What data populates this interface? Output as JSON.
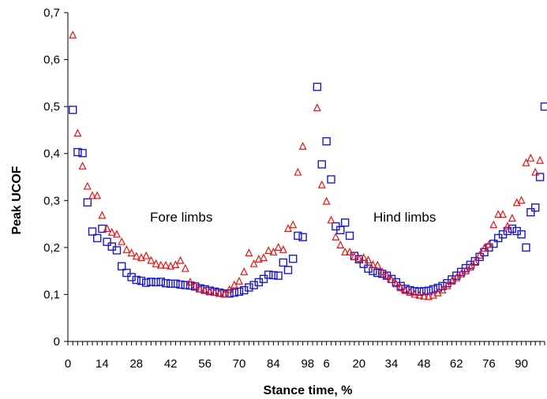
{
  "chart_data": {
    "type": "scatter",
    "title": "",
    "xlabel": "Stance time, %",
    "ylabel": "Peak UCOF",
    "ylim": [
      0,
      0.7
    ],
    "yticks": [
      "0",
      "0,1",
      "0,2",
      "0,3",
      "0,4",
      "0,5",
      "0,6",
      "0,7"
    ],
    "grid": false,
    "legend": "none",
    "colors": {
      "triangles": "#ee1111",
      "squares": "#1a1acc",
      "axis": "#000000"
    },
    "annotations": [
      {
        "id": "fore",
        "text": "Fore limbs"
      },
      {
        "id": "hind",
        "text": "Hind limbs"
      }
    ],
    "panels": [
      {
        "name": "Fore limbs",
        "x_range": [
          0,
          100
        ],
        "xtick_labels": [
          "0",
          "14",
          "28",
          "42",
          "56",
          "70",
          "84",
          "98"
        ],
        "squares": [
          [
            2,
            0.493
          ],
          [
            4,
            0.403
          ],
          [
            6,
            0.401
          ],
          [
            8,
            0.296
          ],
          [
            10,
            0.234
          ],
          [
            12,
            0.22
          ],
          [
            14,
            0.24
          ],
          [
            16,
            0.212
          ],
          [
            18,
            0.202
          ],
          [
            20,
            0.194
          ],
          [
            22,
            0.16
          ],
          [
            24,
            0.146
          ],
          [
            26,
            0.137
          ],
          [
            28,
            0.131
          ],
          [
            30,
            0.129
          ],
          [
            32,
            0.125
          ],
          [
            34,
            0.127
          ],
          [
            36,
            0.126
          ],
          [
            38,
            0.127
          ],
          [
            40,
            0.124
          ],
          [
            42,
            0.123
          ],
          [
            44,
            0.123
          ],
          [
            46,
            0.121
          ],
          [
            48,
            0.12
          ],
          [
            50,
            0.119
          ],
          [
            52,
            0.117
          ],
          [
            54,
            0.113
          ],
          [
            56,
            0.111
          ],
          [
            58,
            0.108
          ],
          [
            60,
            0.106
          ],
          [
            62,
            0.104
          ],
          [
            64,
            0.102
          ],
          [
            66,
            0.102
          ],
          [
            68,
            0.104
          ],
          [
            70,
            0.106
          ],
          [
            72,
            0.109
          ],
          [
            74,
            0.115
          ],
          [
            76,
            0.12
          ],
          [
            78,
            0.126
          ],
          [
            80,
            0.133
          ],
          [
            82,
            0.142
          ],
          [
            84,
            0.141
          ],
          [
            86,
            0.14
          ],
          [
            88,
            0.168
          ],
          [
            90,
            0.152
          ],
          [
            92,
            0.176
          ],
          [
            94,
            0.225
          ],
          [
            96,
            0.222
          ]
        ],
        "triangles": [
          [
            2,
            0.652
          ],
          [
            4,
            0.443
          ],
          [
            6,
            0.373
          ],
          [
            8,
            0.33
          ],
          [
            10,
            0.31
          ],
          [
            12,
            0.31
          ],
          [
            14,
            0.268
          ],
          [
            16,
            0.24
          ],
          [
            18,
            0.232
          ],
          [
            20,
            0.228
          ],
          [
            22,
            0.212
          ],
          [
            24,
            0.195
          ],
          [
            26,
            0.188
          ],
          [
            28,
            0.181
          ],
          [
            30,
            0.178
          ],
          [
            32,
            0.182
          ],
          [
            34,
            0.172
          ],
          [
            36,
            0.165
          ],
          [
            38,
            0.162
          ],
          [
            40,
            0.162
          ],
          [
            42,
            0.16
          ],
          [
            44,
            0.163
          ],
          [
            46,
            0.172
          ],
          [
            48,
            0.155
          ],
          [
            50,
            0.126
          ],
          [
            52,
            0.118
          ],
          [
            54,
            0.111
          ],
          [
            56,
            0.108
          ],
          [
            58,
            0.105
          ],
          [
            60,
            0.104
          ],
          [
            62,
            0.102
          ],
          [
            64,
            0.1
          ],
          [
            66,
            0.11
          ],
          [
            68,
            0.12
          ],
          [
            70,
            0.128
          ],
          [
            72,
            0.148
          ],
          [
            74,
            0.188
          ],
          [
            76,
            0.165
          ],
          [
            78,
            0.175
          ],
          [
            80,
            0.178
          ],
          [
            82,
            0.193
          ],
          [
            84,
            0.19
          ],
          [
            86,
            0.2
          ],
          [
            88,
            0.195
          ],
          [
            90,
            0.24
          ],
          [
            92,
            0.248
          ],
          [
            94,
            0.36
          ],
          [
            96,
            0.415
          ]
        ]
      },
      {
        "name": "Hind limbs",
        "x_range": [
          0,
          100
        ],
        "xtick_labels": [
          "6",
          "20",
          "34",
          "48",
          "62",
          "76",
          "90"
        ],
        "squares": [
          [
            2,
            0.542
          ],
          [
            4,
            0.377
          ],
          [
            6,
            0.426
          ],
          [
            8,
            0.345
          ],
          [
            10,
            0.245
          ],
          [
            12,
            0.237
          ],
          [
            14,
            0.253
          ],
          [
            16,
            0.225
          ],
          [
            18,
            0.182
          ],
          [
            20,
            0.175
          ],
          [
            22,
            0.165
          ],
          [
            24,
            0.155
          ],
          [
            26,
            0.15
          ],
          [
            28,
            0.146
          ],
          [
            30,
            0.144
          ],
          [
            32,
            0.14
          ],
          [
            34,
            0.133
          ],
          [
            36,
            0.126
          ],
          [
            38,
            0.118
          ],
          [
            40,
            0.112
          ],
          [
            42,
            0.109
          ],
          [
            44,
            0.107
          ],
          [
            46,
            0.106
          ],
          [
            48,
            0.107
          ],
          [
            50,
            0.108
          ],
          [
            52,
            0.111
          ],
          [
            54,
            0.114
          ],
          [
            56,
            0.118
          ],
          [
            58,
            0.124
          ],
          [
            60,
            0.132
          ],
          [
            62,
            0.14
          ],
          [
            64,
            0.148
          ],
          [
            66,
            0.156
          ],
          [
            68,
            0.163
          ],
          [
            70,
            0.171
          ],
          [
            72,
            0.18
          ],
          [
            74,
            0.19
          ],
          [
            76,
            0.2
          ],
          [
            78,
            0.208
          ],
          [
            80,
            0.22
          ],
          [
            82,
            0.228
          ],
          [
            84,
            0.235
          ],
          [
            86,
            0.24
          ],
          [
            88,
            0.235
          ],
          [
            90,
            0.228
          ],
          [
            92,
            0.2
          ],
          [
            94,
            0.275
          ],
          [
            96,
            0.285
          ],
          [
            98,
            0.35
          ],
          [
            100,
            0.5
          ]
        ],
        "triangles": [
          [
            2,
            0.497
          ],
          [
            4,
            0.333
          ],
          [
            6,
            0.298
          ],
          [
            8,
            0.258
          ],
          [
            10,
            0.222
          ],
          [
            12,
            0.205
          ],
          [
            14,
            0.19
          ],
          [
            16,
            0.19
          ],
          [
            18,
            0.18
          ],
          [
            20,
            0.176
          ],
          [
            22,
            0.178
          ],
          [
            24,
            0.173
          ],
          [
            26,
            0.163
          ],
          [
            28,
            0.162
          ],
          [
            30,
            0.148
          ],
          [
            32,
            0.14
          ],
          [
            34,
            0.131
          ],
          [
            36,
            0.122
          ],
          [
            38,
            0.114
          ],
          [
            40,
            0.108
          ],
          [
            42,
            0.104
          ],
          [
            44,
            0.1
          ],
          [
            46,
            0.098
          ],
          [
            48,
            0.096
          ],
          [
            50,
            0.095
          ],
          [
            52,
            0.098
          ],
          [
            54,
            0.103
          ],
          [
            56,
            0.109
          ],
          [
            58,
            0.118
          ],
          [
            60,
            0.128
          ],
          [
            62,
            0.135
          ],
          [
            64,
            0.143
          ],
          [
            66,
            0.15
          ],
          [
            68,
            0.158
          ],
          [
            70,
            0.168
          ],
          [
            72,
            0.183
          ],
          [
            74,
            0.198
          ],
          [
            76,
            0.206
          ],
          [
            78,
            0.248
          ],
          [
            80,
            0.27
          ],
          [
            82,
            0.27
          ],
          [
            84,
            0.245
          ],
          [
            86,
            0.262
          ],
          [
            88,
            0.295
          ],
          [
            90,
            0.3
          ],
          [
            92,
            0.38
          ],
          [
            94,
            0.39
          ],
          [
            96,
            0.36
          ],
          [
            98,
            0.385
          ]
        ]
      }
    ]
  }
}
